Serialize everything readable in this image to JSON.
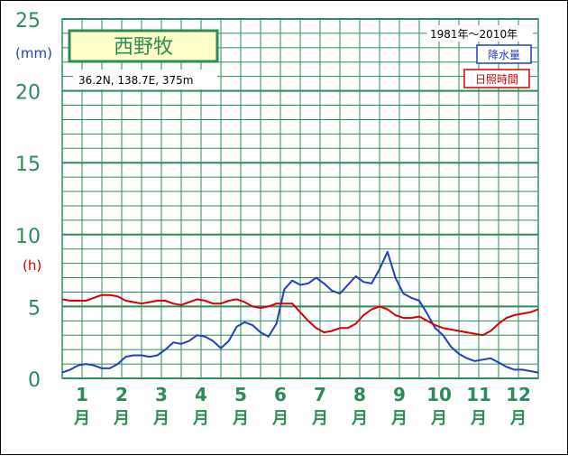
{
  "chart_data": {
    "type": "line",
    "title": "西野牧",
    "location": "36.2N,  138.7E,  375m",
    "period": "1981年〜2010年",
    "y_left_unit": "(mm)",
    "y_left_unit2": "(h)",
    "ylim": [
      0,
      25
    ],
    "yticks": [
      "0",
      "5",
      "10",
      "15",
      "20",
      "25"
    ],
    "month_labels": [
      "1",
      "2",
      "3",
      "4",
      "5",
      "6",
      "7",
      "8",
      "9",
      "10",
      "11",
      "12"
    ],
    "month_suffix": "月",
    "xlim": [
      1,
      13
    ],
    "series": [
      {
        "name": "降水量",
        "color": "#1f3fbf",
        "x": [
          1.0,
          1.2,
          1.4,
          1.6,
          1.8,
          2.0,
          2.2,
          2.4,
          2.6,
          2.8,
          3.0,
          3.2,
          3.4,
          3.6,
          3.8,
          4.0,
          4.2,
          4.4,
          4.6,
          4.8,
          5.0,
          5.2,
          5.4,
          5.6,
          5.8,
          6.0,
          6.2,
          6.4,
          6.6,
          6.8,
          7.0,
          7.2,
          7.4,
          7.6,
          7.8,
          8.0,
          8.2,
          8.4,
          8.6,
          8.8,
          9.0,
          9.2,
          9.4,
          9.6,
          9.8,
          10.0,
          10.2,
          10.4,
          10.6,
          10.8,
          11.0,
          11.2,
          11.4,
          11.6,
          11.8,
          12.0,
          12.2,
          12.4,
          12.6,
          12.8,
          13.0
        ],
        "y": [
          0.4,
          0.6,
          0.9,
          1.0,
          0.9,
          0.7,
          0.7,
          1.0,
          1.5,
          1.6,
          1.6,
          1.5,
          1.6,
          2.0,
          2.5,
          2.4,
          2.6,
          3.0,
          2.9,
          2.6,
          2.1,
          2.6,
          3.6,
          3.9,
          3.7,
          3.2,
          2.9,
          3.8,
          6.2,
          6.8,
          6.5,
          6.6,
          7.0,
          6.6,
          6.1,
          5.9,
          6.5,
          7.1,
          6.7,
          6.6,
          7.6,
          8.8,
          7.0,
          5.9,
          5.6,
          5.4,
          4.5,
          3.5,
          3.0,
          2.2,
          1.7,
          1.4,
          1.2,
          1.3,
          1.4,
          1.1,
          0.8,
          0.6,
          0.6,
          0.5,
          0.4
        ]
      },
      {
        "name": "日照時間",
        "color": "#d40000",
        "x": [
          1.0,
          1.2,
          1.4,
          1.6,
          1.8,
          2.0,
          2.2,
          2.4,
          2.6,
          2.8,
          3.0,
          3.2,
          3.4,
          3.6,
          3.8,
          4.0,
          4.2,
          4.4,
          4.6,
          4.8,
          5.0,
          5.2,
          5.4,
          5.6,
          5.8,
          6.0,
          6.2,
          6.4,
          6.6,
          6.8,
          7.0,
          7.2,
          7.4,
          7.6,
          7.8,
          8.0,
          8.2,
          8.4,
          8.6,
          8.8,
          9.0,
          9.2,
          9.4,
          9.6,
          9.8,
          10.0,
          10.2,
          10.4,
          10.6,
          10.8,
          11.0,
          11.2,
          11.4,
          11.6,
          11.8,
          12.0,
          12.2,
          12.4,
          12.6,
          12.8,
          13.0
        ],
        "y": [
          5.5,
          5.4,
          5.4,
          5.4,
          5.6,
          5.8,
          5.8,
          5.7,
          5.4,
          5.3,
          5.2,
          5.3,
          5.4,
          5.4,
          5.2,
          5.1,
          5.3,
          5.5,
          5.4,
          5.2,
          5.2,
          5.4,
          5.5,
          5.3,
          5.0,
          4.9,
          5.0,
          5.2,
          5.2,
          5.2,
          4.6,
          4.0,
          3.5,
          3.2,
          3.3,
          3.5,
          3.5,
          3.8,
          4.4,
          4.8,
          5.0,
          4.8,
          4.4,
          4.2,
          4.2,
          4.3,
          4.0,
          3.7,
          3.5,
          3.4,
          3.3,
          3.2,
          3.1,
          3.0,
          3.3,
          3.8,
          4.2,
          4.4,
          4.5,
          4.6,
          4.8
        ]
      }
    ],
    "grid": true,
    "legend": "top-right"
  },
  "colors": {
    "grid": "#2e8b57",
    "title_bg": "#ffffc8",
    "precip": "#1f3fbf",
    "sun": "#d40000"
  }
}
